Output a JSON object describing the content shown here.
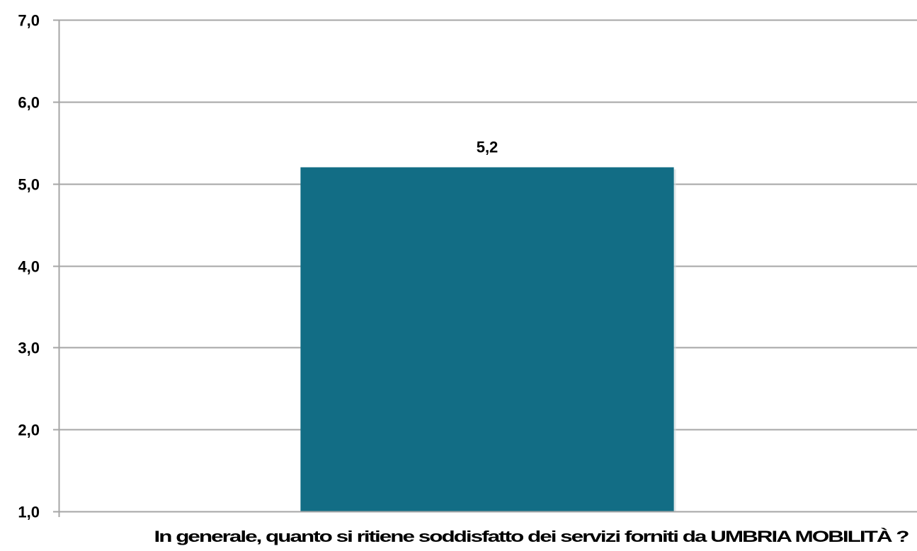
{
  "chart_data": {
    "type": "bar",
    "title": "",
    "xlabel": "",
    "ylabel": "",
    "categories": [
      "In generale, quanto si ritiene soddisfatto dei servizi forniti da UMBRIA MOBILITÀ ?"
    ],
    "values": [
      5.2
    ],
    "data_labels": [
      "5,2"
    ],
    "ylim": [
      1.0,
      7.0
    ],
    "yticks": [
      1.0,
      2.0,
      3.0,
      4.0,
      5.0,
      6.0,
      7.0
    ],
    "ytick_labels": [
      "1,0",
      "2,0",
      "3,0",
      "4,0",
      "5,0",
      "6,0",
      "7,0"
    ],
    "grid": true,
    "legend": "none",
    "colors": {
      "bar": "#126d85",
      "gridline": "#a6a6a6",
      "axis": "#a6a6a6"
    }
  }
}
